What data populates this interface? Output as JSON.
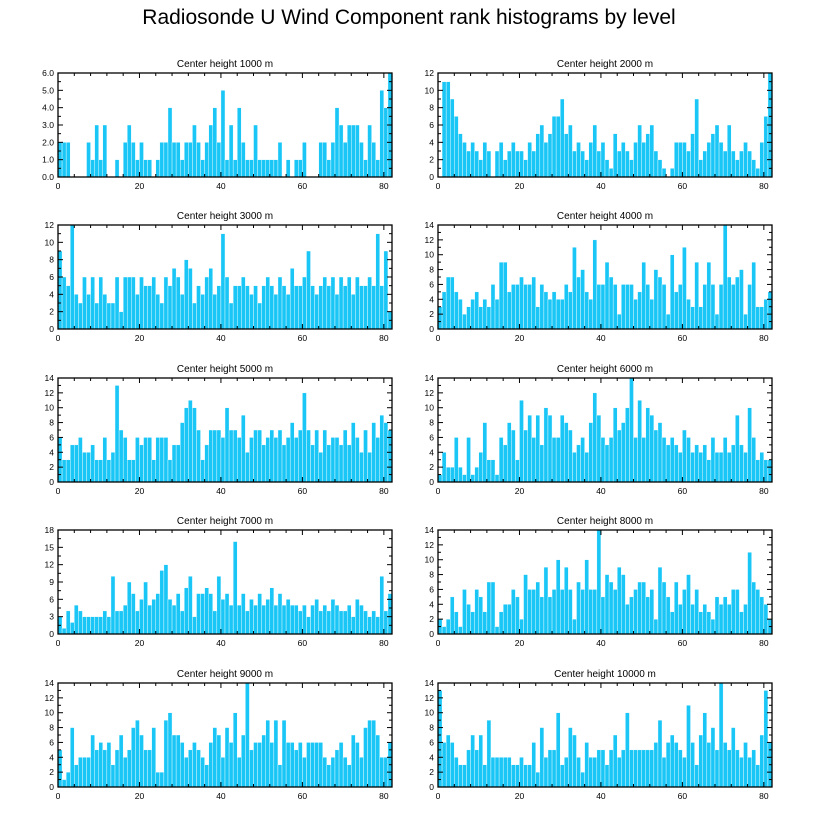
{
  "title": "Radiosonde U Wind Component rank histograms by level",
  "colors": {
    "bar": "#19c6f6",
    "frame": "#000000",
    "background": "#ffffff"
  },
  "chart_data": [
    {
      "type": "bar",
      "title": "Center height 1000 m",
      "xlim": [
        0,
        82
      ],
      "ylim": [
        0,
        6
      ],
      "xticks": [
        "0",
        "20",
        "40",
        "60",
        "80"
      ],
      "yticks": [
        "0.0",
        "1.0",
        "2.0",
        "3.0",
        "4.0",
        "5.0",
        "6.0"
      ],
      "values": [
        2,
        2,
        2,
        0,
        0,
        0,
        0,
        2,
        1,
        3,
        1,
        3,
        0,
        0,
        1,
        0,
        2,
        3,
        2,
        1,
        2,
        1,
        1,
        0,
        1,
        2,
        2,
        4,
        2,
        2,
        1,
        2,
        2,
        3,
        2,
        1,
        2,
        3,
        4,
        2,
        5,
        1,
        3,
        1,
        4,
        2,
        1,
        1,
        3,
        1,
        1,
        1,
        1,
        1,
        2,
        0,
        1,
        0,
        1,
        1,
        2,
        0,
        0,
        0,
        2,
        2,
        1,
        2,
        4,
        3,
        2,
        3,
        3,
        3,
        2,
        1,
        3,
        2,
        1,
        5,
        4,
        6
      ]
    },
    {
      "type": "bar",
      "title": "Center height 2000 m",
      "xlim": [
        0,
        82
      ],
      "ylim": [
        0,
        12
      ],
      "xticks": [
        "0",
        "20",
        "40",
        "60",
        "80"
      ],
      "yticks": [
        "0",
        "2",
        "4",
        "6",
        "8",
        "10",
        "12"
      ],
      "values": [
        0,
        11,
        11,
        9,
        7,
        5,
        4,
        3,
        4,
        3,
        2,
        4,
        3,
        0,
        3,
        4,
        2,
        3,
        4,
        3,
        3,
        2,
        4,
        3,
        5,
        6,
        4,
        5,
        7,
        7,
        9,
        5,
        6,
        3,
        4,
        3,
        2,
        4,
        6,
        3,
        4,
        2,
        1,
        5,
        3,
        4,
        3,
        2,
        4,
        6,
        4,
        5,
        6,
        3,
        2,
        1,
        0,
        1,
        4,
        4,
        4,
        3,
        5,
        9,
        2,
        3,
        4,
        5,
        6,
        4,
        3,
        6,
        3,
        2,
        3,
        4,
        3,
        2,
        1,
        4,
        7,
        12
      ]
    },
    {
      "type": "bar",
      "title": "Center height 3000 m",
      "xlim": [
        0,
        82
      ],
      "ylim": [
        0,
        12
      ],
      "xticks": [
        "0",
        "20",
        "40",
        "60",
        "80"
      ],
      "yticks": [
        "0",
        "2",
        "4",
        "6",
        "8",
        "10",
        "12"
      ],
      "values": [
        9,
        6,
        5,
        12,
        4,
        3,
        6,
        4,
        6,
        3,
        6,
        4,
        3,
        3,
        6,
        2,
        6,
        6,
        6,
        4,
        6,
        5,
        5,
        6,
        4,
        3,
        6,
        5,
        7,
        6,
        4,
        8,
        7,
        3,
        5,
        4,
        6,
        7,
        4,
        5,
        11,
        6,
        3,
        5,
        5,
        6,
        5,
        4,
        5,
        3,
        5,
        6,
        5,
        4,
        6,
        5,
        4,
        7,
        5,
        5,
        6,
        9,
        5,
        4,
        5,
        6,
        5,
        6,
        4,
        6,
        5,
        6,
        4,
        6,
        5,
        5,
        6,
        5,
        11,
        5,
        9,
        2
      ]
    },
    {
      "type": "bar",
      "title": "Center height 4000 m",
      "xlim": [
        0,
        82
      ],
      "ylim": [
        0,
        14
      ],
      "xticks": [
        "0",
        "20",
        "40",
        "60",
        "80"
      ],
      "yticks": [
        "0",
        "2",
        "4",
        "6",
        "8",
        "10",
        "12",
        "14"
      ],
      "values": [
        3,
        5,
        7,
        7,
        5,
        4,
        2,
        3,
        4,
        5,
        3,
        4,
        3,
        6,
        4,
        9,
        9,
        5,
        6,
        6,
        7,
        6,
        6,
        7,
        3,
        6,
        5,
        4,
        5,
        4,
        4,
        6,
        5,
        11,
        7,
        8,
        5,
        4,
        12,
        6,
        6,
        9,
        7,
        6,
        2,
        6,
        6,
        6,
        4,
        5,
        9,
        6,
        4,
        8,
        7,
        6,
        2,
        10,
        5,
        6,
        11,
        4,
        3,
        9,
        3,
        6,
        9,
        6,
        2,
        6,
        14,
        7,
        6,
        7,
        8,
        2,
        6,
        9,
        3,
        3,
        4,
        5
      ]
    },
    {
      "type": "bar",
      "title": "Center height 5000 m",
      "xlim": [
        0,
        82
      ],
      "ylim": [
        0,
        14
      ],
      "xticks": [
        "0",
        "20",
        "40",
        "60",
        "80"
      ],
      "yticks": [
        "0",
        "2",
        "4",
        "6",
        "8",
        "10",
        "12",
        "14"
      ],
      "values": [
        6,
        3,
        3,
        5,
        5,
        6,
        4,
        4,
        5,
        3,
        3,
        6,
        3,
        4,
        13,
        7,
        6,
        3,
        3,
        6,
        5,
        6,
        6,
        3,
        6,
        6,
        6,
        3,
        5,
        5,
        8,
        10,
        11,
        10,
        7,
        3,
        5,
        7,
        7,
        7,
        6,
        10,
        7,
        7,
        6,
        9,
        4,
        6,
        7,
        7,
        5,
        6,
        7,
        6,
        7,
        5,
        6,
        8,
        6,
        7,
        12,
        7,
        5,
        7,
        4,
        7,
        5,
        6,
        6,
        5,
        7,
        5,
        8,
        6,
        4,
        7,
        4,
        8,
        6,
        9,
        8,
        7
      ]
    },
    {
      "type": "bar",
      "title": "Center height 6000 m",
      "xlim": [
        0,
        82
      ],
      "ylim": [
        0,
        14
      ],
      "xticks": [
        "0",
        "20",
        "40",
        "60",
        "80"
      ],
      "yticks": [
        "0",
        "2",
        "4",
        "6",
        "8",
        "10",
        "12",
        "14"
      ],
      "values": [
        1,
        4,
        2,
        2,
        6,
        2,
        1,
        6,
        1,
        2,
        4,
        8,
        3,
        3,
        1,
        6,
        5,
        8,
        7,
        3,
        11,
        7,
        9,
        6,
        9,
        5,
        10,
        9,
        6,
        6,
        9,
        8,
        7,
        4,
        5,
        6,
        4,
        8,
        12,
        9,
        6,
        5,
        6,
        10,
        7,
        8,
        10,
        14,
        6,
        11,
        6,
        10,
        9,
        7,
        8,
        6,
        5,
        6,
        5,
        4,
        7,
        6,
        4,
        5,
        4,
        5,
        3,
        6,
        4,
        4,
        6,
        4,
        5,
        9,
        5,
        4,
        10,
        6,
        3,
        4,
        3,
        3
      ]
    },
    {
      "type": "bar",
      "title": "Center height 7000 m",
      "xlim": [
        0,
        82
      ],
      "ylim": [
        0,
        18
      ],
      "xticks": [
        "0",
        "20",
        "40",
        "60",
        "80"
      ],
      "yticks": [
        "0",
        "3",
        "6",
        "9",
        "12",
        "15",
        "18"
      ],
      "values": [
        3,
        1,
        4,
        2,
        5,
        4,
        3,
        3,
        3,
        3,
        3,
        4,
        3,
        10,
        4,
        4,
        5,
        9,
        7,
        4,
        6,
        9,
        5,
        6,
        7,
        11,
        12,
        6,
        5,
        7,
        4,
        8,
        10,
        3,
        7,
        7,
        8,
        7,
        4,
        10,
        6,
        7,
        5,
        16,
        5,
        7,
        4,
        6,
        5,
        7,
        5,
        6,
        8,
        5,
        7,
        5,
        6,
        5,
        5,
        4,
        5,
        3,
        5,
        6,
        4,
        5,
        4,
        6,
        5,
        4,
        4,
        5,
        3,
        6,
        5,
        4,
        3,
        4,
        3,
        10,
        4,
        7
      ]
    },
    {
      "type": "bar",
      "title": "Center height 8000 m",
      "xlim": [
        0,
        82
      ],
      "ylim": [
        0,
        14
      ],
      "xticks": [
        "0",
        "20",
        "40",
        "60",
        "80"
      ],
      "yticks": [
        "0",
        "2",
        "4",
        "6",
        "8",
        "10",
        "12",
        "14"
      ],
      "values": [
        2,
        1,
        2,
        5,
        3,
        1,
        6,
        4,
        3,
        6,
        5,
        3,
        7,
        7,
        1,
        3,
        4,
        4,
        6,
        5,
        2,
        8,
        6,
        6,
        7,
        5,
        9,
        5,
        6,
        10,
        6,
        9,
        6,
        2,
        7,
        6,
        10,
        6,
        6,
        14,
        5,
        8,
        7,
        6,
        9,
        8,
        4,
        5,
        6,
        7,
        7,
        5,
        6,
        2,
        9,
        7,
        5,
        3,
        7,
        4,
        6,
        8,
        4,
        6,
        3,
        4,
        3,
        2,
        5,
        4,
        5,
        4,
        6,
        6,
        3,
        4,
        11,
        7,
        6,
        5,
        4,
        2
      ]
    },
    {
      "type": "bar",
      "title": "Center height 9000 m",
      "xlim": [
        0,
        82
      ],
      "ylim": [
        0,
        14
      ],
      "xticks": [
        "0",
        "20",
        "40",
        "60",
        "80"
      ],
      "yticks": [
        "0",
        "2",
        "4",
        "6",
        "8",
        "10",
        "12",
        "14"
      ],
      "values": [
        5,
        1,
        2,
        8,
        3,
        4,
        4,
        4,
        7,
        5,
        6,
        5,
        6,
        3,
        5,
        7,
        4,
        5,
        8,
        9,
        7,
        5,
        5,
        8,
        2,
        2,
        9,
        10,
        7,
        7,
        6,
        4,
        5,
        6,
        5,
        4,
        3,
        6,
        8,
        7,
        4,
        8,
        6,
        10,
        4,
        7,
        14,
        5,
        6,
        6,
        7,
        9,
        6,
        9,
        3,
        9,
        6,
        6,
        5,
        6,
        4,
        6,
        6,
        6,
        6,
        4,
        3,
        4,
        5,
        6,
        4,
        3,
        7,
        6,
        4,
        8,
        9,
        9,
        7,
        4,
        4,
        6
      ]
    },
    {
      "type": "bar",
      "title": "Center height 10000 m",
      "xlim": [
        0,
        82
      ],
      "ylim": [
        0,
        14
      ],
      "xticks": [
        "0",
        "20",
        "40",
        "60",
        "80"
      ],
      "yticks": [
        "0",
        "2",
        "4",
        "6",
        "8",
        "10",
        "12",
        "14"
      ],
      "values": [
        13,
        6,
        7,
        6,
        4,
        3,
        3,
        5,
        7,
        5,
        7,
        3,
        9,
        4,
        4,
        4,
        4,
        4,
        3,
        3,
        4,
        3,
        3,
        6,
        2,
        8,
        4,
        5,
        5,
        10,
        3,
        4,
        8,
        7,
        4,
        2,
        6,
        4,
        4,
        5,
        5,
        3,
        5,
        7,
        4,
        5,
        10,
        5,
        5,
        5,
        5,
        5,
        5,
        6,
        9,
        4,
        6,
        7,
        6,
        5,
        4,
        11,
        6,
        3,
        7,
        10,
        6,
        8,
        5,
        14,
        6,
        5,
        8,
        5,
        4,
        6,
        4,
        5,
        3,
        7,
        13,
        6
      ]
    }
  ]
}
